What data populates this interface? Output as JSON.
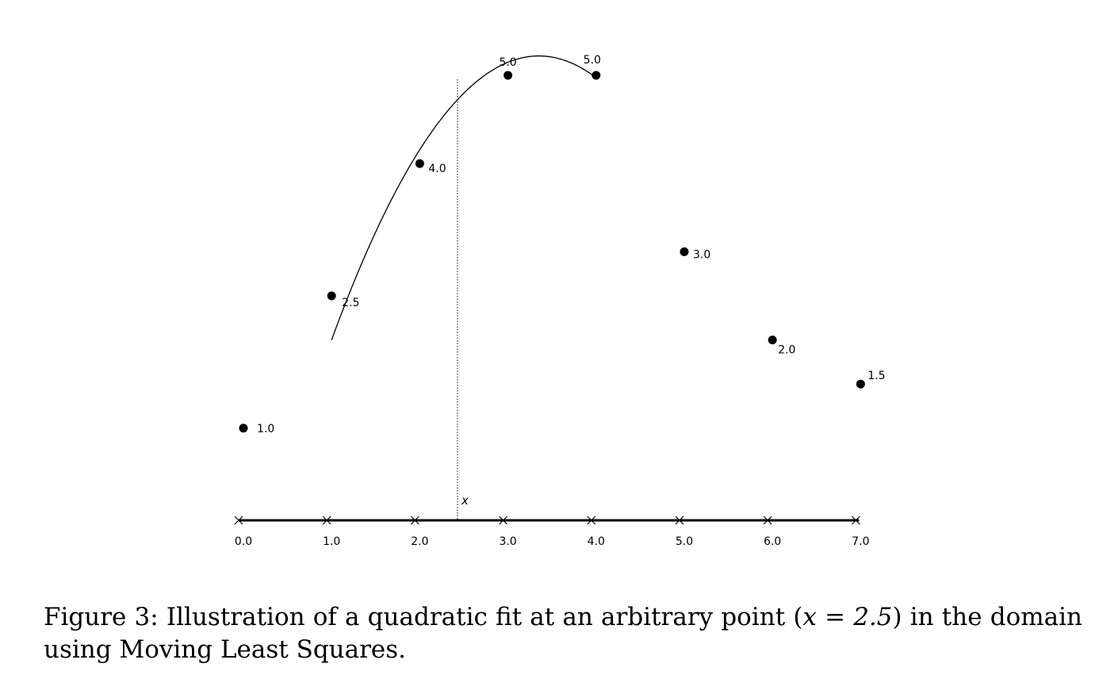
{
  "chart_data": {
    "type": "scatter",
    "x": [
      0.0,
      1.0,
      2.0,
      3.0,
      4.0,
      5.0,
      6.0,
      7.0
    ],
    "y": [
      1.0,
      2.5,
      4.0,
      5.0,
      5.0,
      3.0,
      2.0,
      1.5
    ],
    "point_labels": [
      "1.0",
      "2.5",
      "4.0",
      "5.0",
      "5.0",
      "3.0",
      "2.0",
      "1.5"
    ],
    "tick_labels": [
      "0.0",
      "1.0",
      "2.0",
      "3.0",
      "4.0",
      "5.0",
      "6.0",
      "7.0"
    ],
    "eval_point": {
      "x": 2.5,
      "label": "x"
    },
    "fit_curve": {
      "kind": "quadratic",
      "x_range": [
        1.0,
        4.0
      ],
      "y_range": [
        2.0,
        5.22
      ]
    },
    "xlim": [
      0.0,
      7.0
    ],
    "ylim": [
      0.0,
      5.0
    ],
    "grid": false,
    "marker_color": "#000000"
  },
  "caption": {
    "prefix": "Figure 3: Illustration of a quadratic fit at an arbitrary point (",
    "math": "x = 2.5",
    "suffix": ") in the domain using Moving Least Squares."
  }
}
